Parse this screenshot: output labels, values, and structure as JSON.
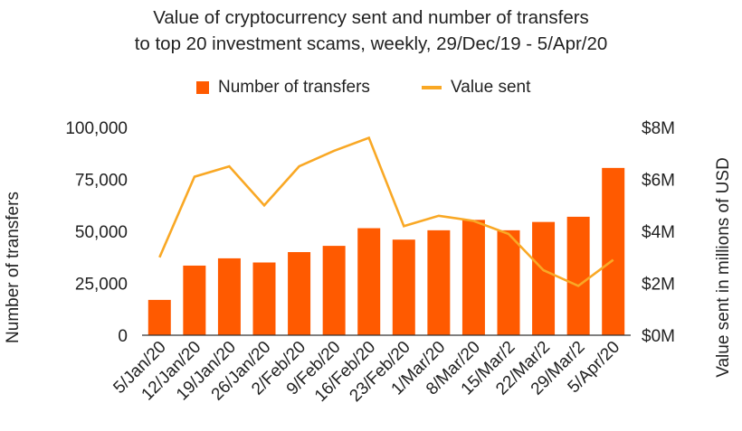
{
  "chart_data": {
    "type": "bar",
    "title": "Value of cryptocurrency sent and number of transfers",
    "subtitle": "to top 20 investment scams, weekly, 29/Dec/19 - 5/Apr/20",
    "categories": [
      "5/Jan/20",
      "12/Jan/20",
      "19/Jan/20",
      "26/Jan/20",
      "2/Feb/20",
      "9/Feb/20",
      "16/Feb/20",
      "23/Feb/20",
      "1/Mar/20",
      "8/Mar/20",
      "15/Mar/2",
      "22/Mar/2",
      "29/Mar/2",
      "5/Apr/20"
    ],
    "series": [
      {
        "name": "Number of transfers",
        "type": "bar",
        "axis": "left",
        "color": "#ff5a00",
        "values": [
          17000,
          33500,
          37000,
          35000,
          40000,
          43000,
          51500,
          46000,
          50500,
          55500,
          50500,
          54500,
          57000,
          80500
        ]
      },
      {
        "name": "Value sent",
        "type": "line",
        "axis": "right",
        "color": "#f9a825",
        "values": [
          3.0,
          6.1,
          6.5,
          5.0,
          6.5,
          7.1,
          7.6,
          4.2,
          4.6,
          4.4,
          3.9,
          2.5,
          1.9,
          2.9
        ]
      }
    ],
    "ylabel": "Number of transfers",
    "ylim": [
      0,
      100000
    ],
    "yticks": [
      "0",
      "25,000",
      "50,000",
      "75,000",
      "100,000"
    ],
    "y2label": "Value sent in millions of USD",
    "y2lim": [
      0,
      8
    ],
    "y2ticks": [
      "$0M",
      "$2M",
      "$4M",
      "$6M",
      "$8M"
    ],
    "legend_position": "top-center",
    "grid": false
  }
}
